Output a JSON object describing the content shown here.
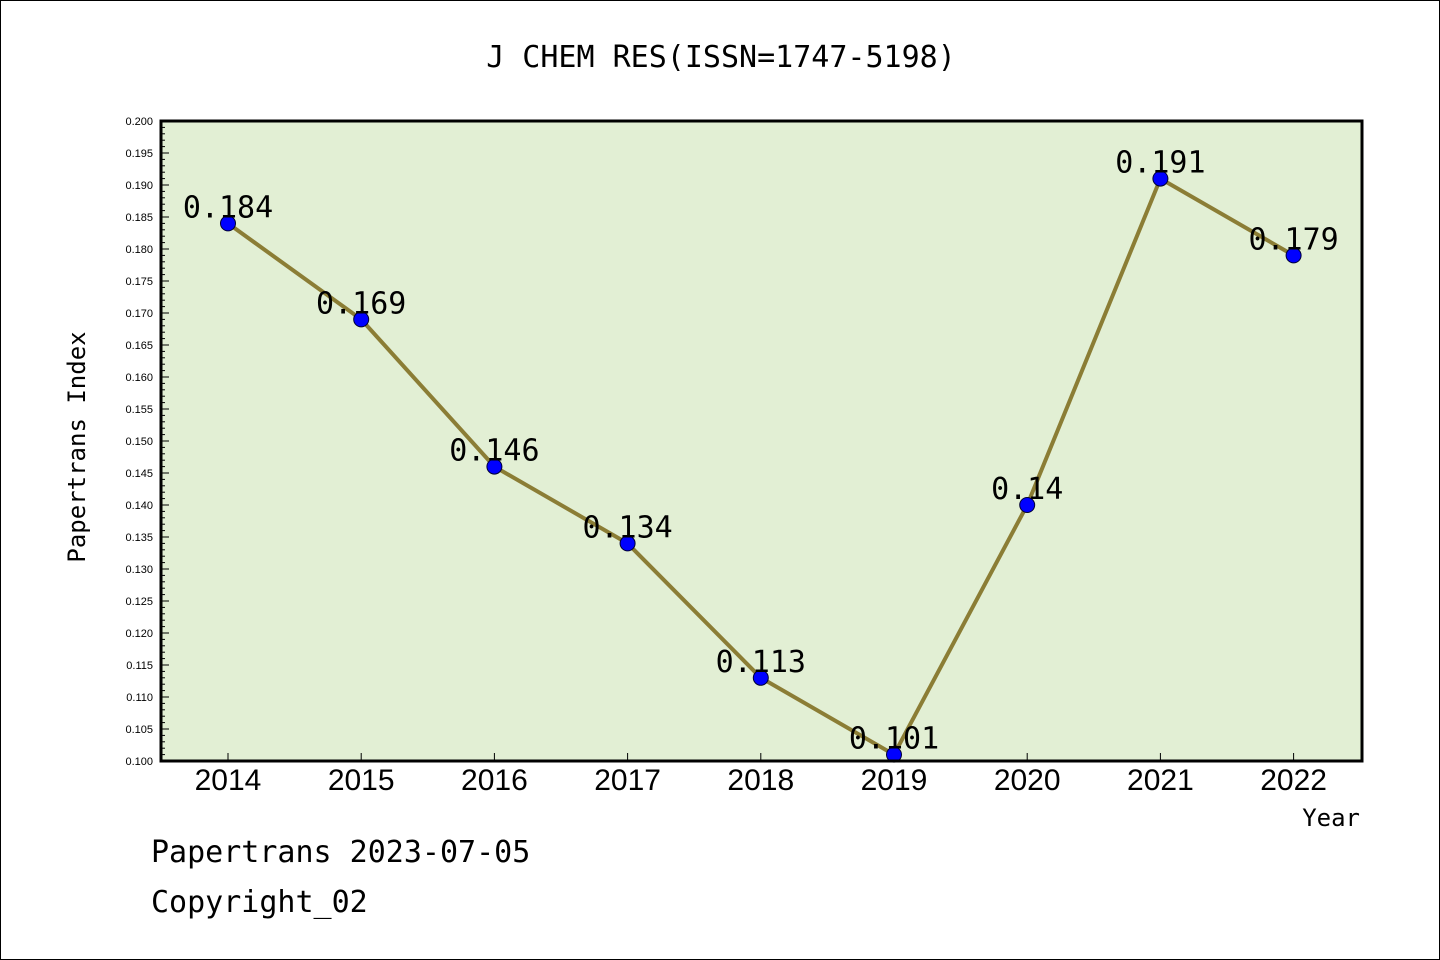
{
  "chart_data": {
    "type": "line",
    "title": "J CHEM RES(ISSN=1747-5198)",
    "xlabel": "Year",
    "ylabel": "Papertrans Index",
    "categories": [
      "2014",
      "2015",
      "2016",
      "2017",
      "2018",
      "2019",
      "2020",
      "2021",
      "2022"
    ],
    "values": [
      0.184,
      0.169,
      0.146,
      0.134,
      0.113,
      0.101,
      0.14,
      0.191,
      0.179
    ],
    "data_labels": [
      "0.184",
      "0.169",
      "0.146",
      "0.134",
      "0.113",
      "0.101",
      "0.14",
      "0.191",
      "0.179"
    ],
    "ylim": [
      0.1,
      0.2
    ],
    "yticks": [
      "0.100",
      "0.105",
      "0.110",
      "0.115",
      "0.120",
      "0.125",
      "0.130",
      "0.135",
      "0.140",
      "0.145",
      "0.150",
      "0.155",
      "0.160",
      "0.165",
      "0.170",
      "0.175",
      "0.180",
      "0.185",
      "0.190",
      "0.195",
      "0.200"
    ],
    "grid": false,
    "legend": "none",
    "colors": {
      "plot_background": "#e2efd4",
      "line": "#8b7d35",
      "marker": "#0000ff"
    }
  },
  "footer": {
    "line1": "Papertrans 2023-07-05",
    "line2": "Copyright_02"
  }
}
